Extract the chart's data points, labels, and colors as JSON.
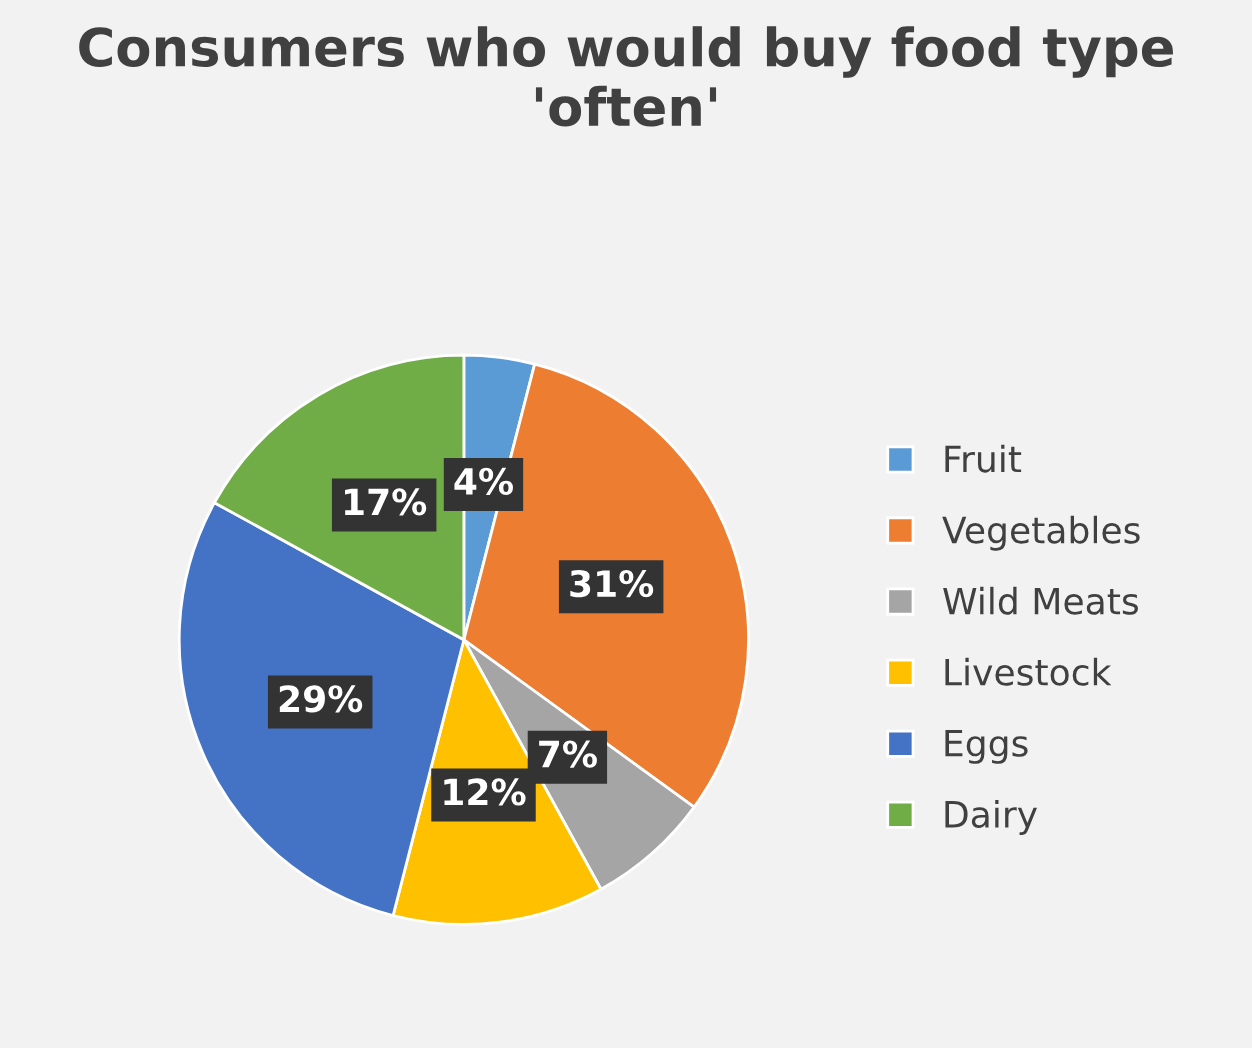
{
  "chart_data": {
    "type": "pie",
    "title": "Consumers who would buy food type 'often'",
    "categories": [
      "Fruit",
      "Vegetables",
      "Wild Meats",
      "Livestock",
      "Eggs",
      "Dairy"
    ],
    "values": [
      4,
      31,
      7,
      12,
      29,
      17
    ],
    "colors": [
      "#5b9bd5",
      "#ed7d31",
      "#a5a5a5",
      "#ffc000",
      "#4472c4",
      "#70ad47"
    ],
    "value_labels": [
      "4%",
      "31%",
      "7%",
      "12%",
      "29%",
      "17%"
    ],
    "legend": "right"
  }
}
